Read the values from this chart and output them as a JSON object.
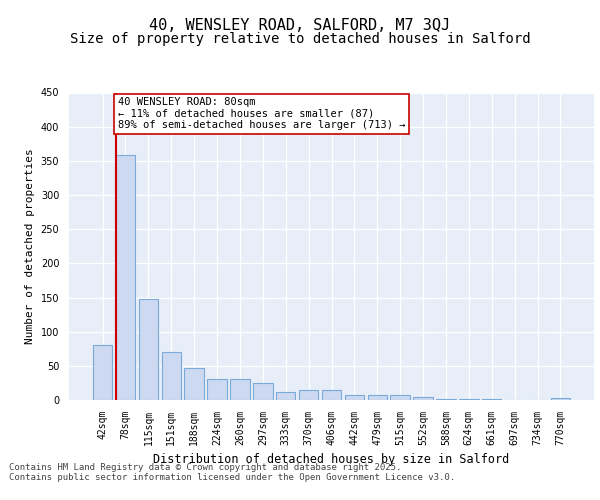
{
  "title1": "40, WENSLEY ROAD, SALFORD, M7 3QJ",
  "title2": "Size of property relative to detached houses in Salford",
  "xlabel": "Distribution of detached houses by size in Salford",
  "ylabel": "Number of detached properties",
  "categories": [
    "42sqm",
    "78sqm",
    "115sqm",
    "151sqm",
    "188sqm",
    "224sqm",
    "260sqm",
    "297sqm",
    "333sqm",
    "370sqm",
    "406sqm",
    "442sqm",
    "479sqm",
    "515sqm",
    "552sqm",
    "588sqm",
    "624sqm",
    "661sqm",
    "697sqm",
    "734sqm",
    "770sqm"
  ],
  "values": [
    80,
    358,
    148,
    70,
    47,
    31,
    31,
    25,
    12,
    15,
    15,
    7,
    7,
    7,
    4,
    1,
    1,
    1,
    0,
    0,
    3
  ],
  "bar_color": "#ccd9f0",
  "bar_edge_color": "#7aaad8",
  "vline_color": "#cc0000",
  "annotation_text": "40 WENSLEY ROAD: 80sqm\n← 11% of detached houses are smaller (87)\n89% of semi-detached houses are larger (713) →",
  "annotation_box_color": "#ffffff",
  "annotation_box_edge": "#cc0000",
  "ylim": [
    0,
    450
  ],
  "yticks": [
    0,
    50,
    100,
    150,
    200,
    250,
    300,
    350,
    400,
    450
  ],
  "background_color": "#e8eef8",
  "grid_color": "#ffffff",
  "footer_text": "Contains HM Land Registry data © Crown copyright and database right 2025.\nContains public sector information licensed under the Open Government Licence v3.0.",
  "title_fontsize": 11,
  "subtitle_fontsize": 10,
  "axis_label_fontsize": 8.5,
  "tick_fontsize": 7,
  "annotation_fontsize": 7.5,
  "ylabel_fontsize": 8
}
